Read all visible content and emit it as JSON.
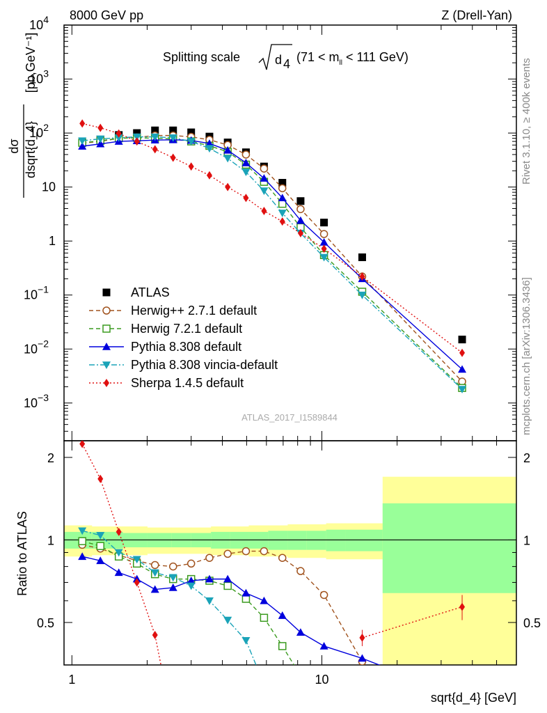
{
  "header": {
    "left": "8000 GeV pp",
    "right": "Z (Drell-Yan)"
  },
  "side_labels": {
    "rivet": "Rivet 3.1.10, ≥ 400k events",
    "mcplots": "mcplots.cern.ch [arXiv:1306.3436]"
  },
  "analysis_id": "ATLAS_2017_I1589844",
  "chart_data": [
    {
      "type": "line",
      "panel": "main",
      "title": "Splitting scale √d₄ (71 < m_ll < 111 GeV)",
      "xlabel": "sqrt{d_4} [GeV]",
      "ylabel": "dσ/dsqrt{d_4} [pb,GeV⁻¹]",
      "xscale": "log",
      "yscale": "log",
      "xlim": [
        0.93,
        60
      ],
      "ylim": [
        0.0002,
        10000
      ],
      "xticks": [
        "1",
        "10"
      ],
      "yticks": [
        "10^4",
        "10^3",
        "10^2",
        "10",
        "1",
        "10^-1",
        "10^-2",
        "10^-3"
      ],
      "legend": "left-center",
      "series": [
        {
          "name": "ATLAS",
          "color": "#000000",
          "marker": "square",
          "line": "none",
          "x": [
            1.1,
            1.3,
            1.54,
            1.82,
            2.15,
            2.54,
            3.0,
            3.55,
            4.2,
            4.97,
            5.87,
            6.95,
            8.22,
            10.2,
            14.5,
            36.4
          ],
          "y": [
            67,
            75,
            92,
            100,
            112,
            112,
            103,
            86,
            67,
            44,
            24,
            12,
            5.5,
            2.2,
            0.5,
            0.015
          ]
        },
        {
          "name": "Herwig++ 2.7.1 default",
          "color": "#a0521d",
          "marker": "circle-open",
          "line": "dashed",
          "x": [
            1.1,
            1.3,
            1.54,
            1.82,
            2.15,
            2.54,
            3.0,
            3.55,
            4.2,
            4.97,
            5.87,
            6.95,
            8.22,
            10.2,
            14.5,
            36.4
          ],
          "y": [
            65,
            70,
            80,
            83,
            90,
            90,
            85,
            75,
            60,
            40,
            22,
            9.5,
            3.9,
            1.35,
            0.22,
            0.0025
          ]
        },
        {
          "name": "Herwig 7.2.1 default",
          "color": "#3a9a1e",
          "marker": "square-open",
          "line": "dashed",
          "x": [
            1.1,
            1.3,
            1.54,
            1.82,
            2.15,
            2.54,
            3.0,
            3.55,
            4.2,
            4.97,
            5.87,
            6.95,
            8.22,
            10.2,
            14.5,
            36.4
          ],
          "y": [
            66,
            72,
            80,
            82,
            80,
            78,
            70,
            58,
            45,
            26,
            12.5,
            4.9,
            1.8,
            0.55,
            0.115,
            0.0019
          ]
        },
        {
          "name": "Pythia 8.308 default",
          "color": "#0000dd",
          "marker": "triangle-up",
          "line": "solid",
          "x": [
            1.1,
            1.3,
            1.54,
            1.82,
            2.15,
            2.54,
            3.0,
            3.55,
            4.2,
            4.97,
            5.87,
            6.95,
            8.22,
            10.2,
            14.5,
            36.4
          ],
          "y": [
            57,
            63,
            70,
            72,
            74,
            75,
            73,
            64,
            48,
            28,
            14.5,
            6.3,
            2.4,
            0.95,
            0.2,
            0.0042
          ]
        },
        {
          "name": "Pythia 8.308 vincia-default",
          "color": "#1aa3b8",
          "marker": "triangle-down",
          "line": "dashdot",
          "x": [
            1.1,
            1.3,
            1.54,
            1.82,
            2.15,
            2.54,
            3.0,
            3.55,
            4.2,
            4.97,
            5.87,
            6.95,
            8.22,
            10.2,
            14.5,
            36.4
          ],
          "y": [
            72,
            78,
            82,
            85,
            85,
            82,
            70,
            52,
            34,
            19,
            8.5,
            3.3,
            1.4,
            0.5,
            0.1,
            0.0018
          ]
        },
        {
          "name": "Sherpa 1.4.5 default",
          "color": "#e01010",
          "marker": "diamond",
          "line": "dotted",
          "x": [
            1.1,
            1.3,
            1.54,
            1.82,
            2.15,
            2.54,
            3.0,
            3.55,
            4.2,
            4.97,
            5.87,
            6.95,
            8.22,
            10.2,
            14.5,
            36.4
          ],
          "y": [
            150,
            125,
            98,
            70,
            50,
            35,
            24,
            16.5,
            10,
            6.3,
            3.6,
            2.3,
            1.4,
            0.72,
            0.22,
            0.0085
          ]
        }
      ]
    },
    {
      "type": "line",
      "panel": "ratio",
      "ylabel": "Ratio to ATLAS",
      "xlabel": "sqrt{d_4} [GeV]",
      "xscale": "log",
      "xlim": [
        0.93,
        60
      ],
      "ylim": [
        0.35,
        2.3
      ],
      "xticks": [
        "1",
        "10"
      ],
      "yticks": [
        "0.5",
        "1",
        "2"
      ],
      "bands": {
        "edges": [
          0.93,
          1.2,
          1.6,
          2.0,
          2.5,
          3.0,
          3.6,
          4.3,
          5.1,
          6.1,
          7.3,
          8.7,
          10.4,
          12.4,
          17.5,
          60
        ],
        "yellow_lo": [
          0.87,
          0.88,
          0.88,
          0.89,
          0.89,
          0.89,
          0.88,
          0.88,
          0.87,
          0.87,
          0.86,
          0.86,
          0.85,
          0.85,
          0.3
        ],
        "yellow_hi": [
          1.13,
          1.12,
          1.12,
          1.11,
          1.11,
          1.11,
          1.12,
          1.12,
          1.13,
          1.13,
          1.14,
          1.14,
          1.15,
          1.15,
          1.7
        ],
        "green_lo": [
          0.93,
          0.93,
          0.94,
          0.94,
          0.94,
          0.94,
          0.93,
          0.93,
          0.93,
          0.92,
          0.92,
          0.92,
          0.91,
          0.91,
          0.64
        ],
        "green_hi": [
          1.07,
          1.07,
          1.06,
          1.06,
          1.06,
          1.06,
          1.07,
          1.07,
          1.07,
          1.08,
          1.08,
          1.08,
          1.09,
          1.09,
          1.36
        ]
      },
      "series": [
        {
          "name": "Herwig++ 2.7.1 default",
          "color": "#a0521d",
          "marker": "circle-open",
          "line": "dashed",
          "x": [
            1.1,
            1.3,
            1.54,
            1.82,
            2.15,
            2.54,
            3.0,
            3.55,
            4.2,
            4.97,
            5.87,
            6.95,
            8.22,
            10.2,
            14.5
          ],
          "y": [
            0.96,
            0.93,
            0.88,
            0.84,
            0.81,
            0.8,
            0.82,
            0.86,
            0.89,
            0.91,
            0.91,
            0.86,
            0.77,
            0.63,
            0.36
          ]
        },
        {
          "name": "Herwig 7.2.1 default",
          "color": "#3a9a1e",
          "marker": "square-open",
          "line": "dashed",
          "x": [
            1.1,
            1.3,
            1.54,
            1.82,
            2.15,
            2.54,
            3.0,
            3.55,
            4.2,
            4.97,
            5.87,
            6.95,
            8.22
          ],
          "y": [
            0.99,
            0.95,
            0.87,
            0.82,
            0.75,
            0.72,
            0.72,
            0.71,
            0.68,
            0.61,
            0.52,
            0.41,
            0.32
          ]
        },
        {
          "name": "Pythia 8.308 default",
          "color": "#0000dd",
          "marker": "triangle-up",
          "line": "solid",
          "x": [
            1.1,
            1.3,
            1.54,
            1.82,
            2.15,
            2.54,
            3.0,
            3.55,
            4.2,
            4.97,
            5.87,
            6.95,
            8.22,
            10.2,
            14.5,
            20
          ],
          "y": [
            0.87,
            0.84,
            0.76,
            0.72,
            0.66,
            0.67,
            0.71,
            0.72,
            0.72,
            0.64,
            0.6,
            0.53,
            0.46,
            0.41,
            0.37,
            0.33
          ]
        },
        {
          "name": "Pythia 8.308 vincia-default",
          "color": "#1aa3b8",
          "marker": "triangle-down",
          "line": "dashdot",
          "x": [
            1.1,
            1.3,
            1.54,
            1.82,
            2.15,
            2.54,
            3.0,
            3.55,
            4.2,
            4.97,
            5.6
          ],
          "y": [
            1.08,
            1.04,
            0.9,
            0.85,
            0.76,
            0.73,
            0.68,
            0.6,
            0.51,
            0.43,
            0.33
          ]
        },
        {
          "name": "Sherpa 1.4.5 default",
          "color": "#e01010",
          "marker": "diamond",
          "line": "dotted",
          "x": [
            1.1,
            1.3,
            1.54,
            1.82,
            2.15,
            2.3
          ],
          "y": [
            2.24,
            1.67,
            1.07,
            0.7,
            0.45,
            0.33
          ]
        },
        {
          "name": "Sherpa 1.4.5 default (high bins)",
          "color": "#e01010",
          "marker": "diamond",
          "line": "dotted",
          "x": [
            14.5,
            36.4
          ],
          "y": [
            0.44,
            0.57
          ],
          "yerr": [
            0.03,
            0.06
          ]
        }
      ]
    }
  ]
}
